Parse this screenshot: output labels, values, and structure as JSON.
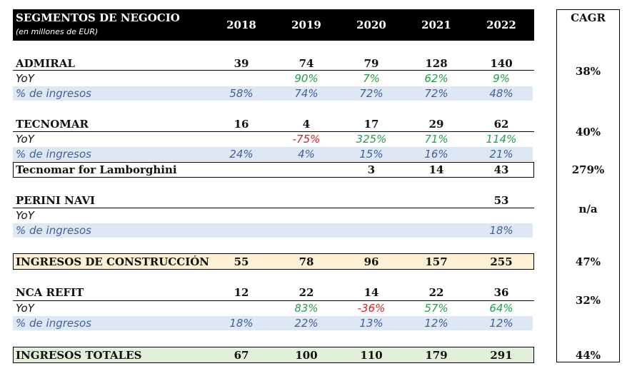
{
  "header": {
    "title": "SEGMENTOS DE NEGOCIO",
    "subtitle": "(en millones de EUR)",
    "years": [
      "2018",
      "2019",
      "2020",
      "2021",
      "2022"
    ],
    "cagr_label": "CAGR"
  },
  "admiral": {
    "label": "ADMIRAL",
    "values": [
      "39",
      "74",
      "79",
      "128",
      "140"
    ],
    "yoy_label": "YoY",
    "yoy": [
      "",
      "90%",
      "7%",
      "62%",
      "9%"
    ],
    "share_label": "% de ingresos",
    "share": [
      "58%",
      "74%",
      "72%",
      "72%",
      "48%"
    ],
    "cagr": "38%"
  },
  "tecnomar": {
    "label": "TECNOMAR",
    "values": [
      "16",
      "4",
      "17",
      "29",
      "62"
    ],
    "yoy_label": "YoY",
    "yoy": [
      "",
      "-75%",
      "325%",
      "71%",
      "114%"
    ],
    "share_label": "% de ingresos",
    "share": [
      "24%",
      "4%",
      "15%",
      "16%",
      "21%"
    ],
    "cagr": "40%"
  },
  "lamborghini": {
    "label": "Tecnomar for Lamborghini",
    "values": [
      "",
      "",
      "3",
      "14",
      "43"
    ],
    "cagr": "279%"
  },
  "perini": {
    "label": "PERINI NAVI",
    "values": [
      "",
      "",
      "",
      "",
      "53"
    ],
    "yoy_label": "YoY",
    "share_label": "% de ingresos",
    "share": [
      "",
      "",
      "",
      "",
      "18%"
    ],
    "cagr": "n/a"
  },
  "construction": {
    "label": "INGRESOS DE CONSTRUCCIÓN",
    "values": [
      "55",
      "78",
      "96",
      "157",
      "255"
    ],
    "cagr": "47%"
  },
  "nca": {
    "label": "NCA REFIT",
    "values": [
      "12",
      "22",
      "14",
      "22",
      "36"
    ],
    "yoy_label": "YoY",
    "yoy": [
      "",
      "83%",
      "-36%",
      "57%",
      "64%"
    ],
    "share_label": "% de ingresos",
    "share": [
      "18%",
      "22%",
      "13%",
      "12%",
      "12%"
    ],
    "cagr": "32%"
  },
  "total": {
    "label": "INGRESOS TOTALES",
    "values": [
      "67",
      "100",
      "110",
      "179",
      "291"
    ],
    "cagr": "44%"
  },
  "colors": {
    "header_bg": "#000000",
    "band_blue": "#dde8f4",
    "construction_bg": "#fdf0d4",
    "total_bg": "#e2efd9",
    "positive": "#1fa34a",
    "negative": "#d42020",
    "share_text": "#44609c"
  }
}
